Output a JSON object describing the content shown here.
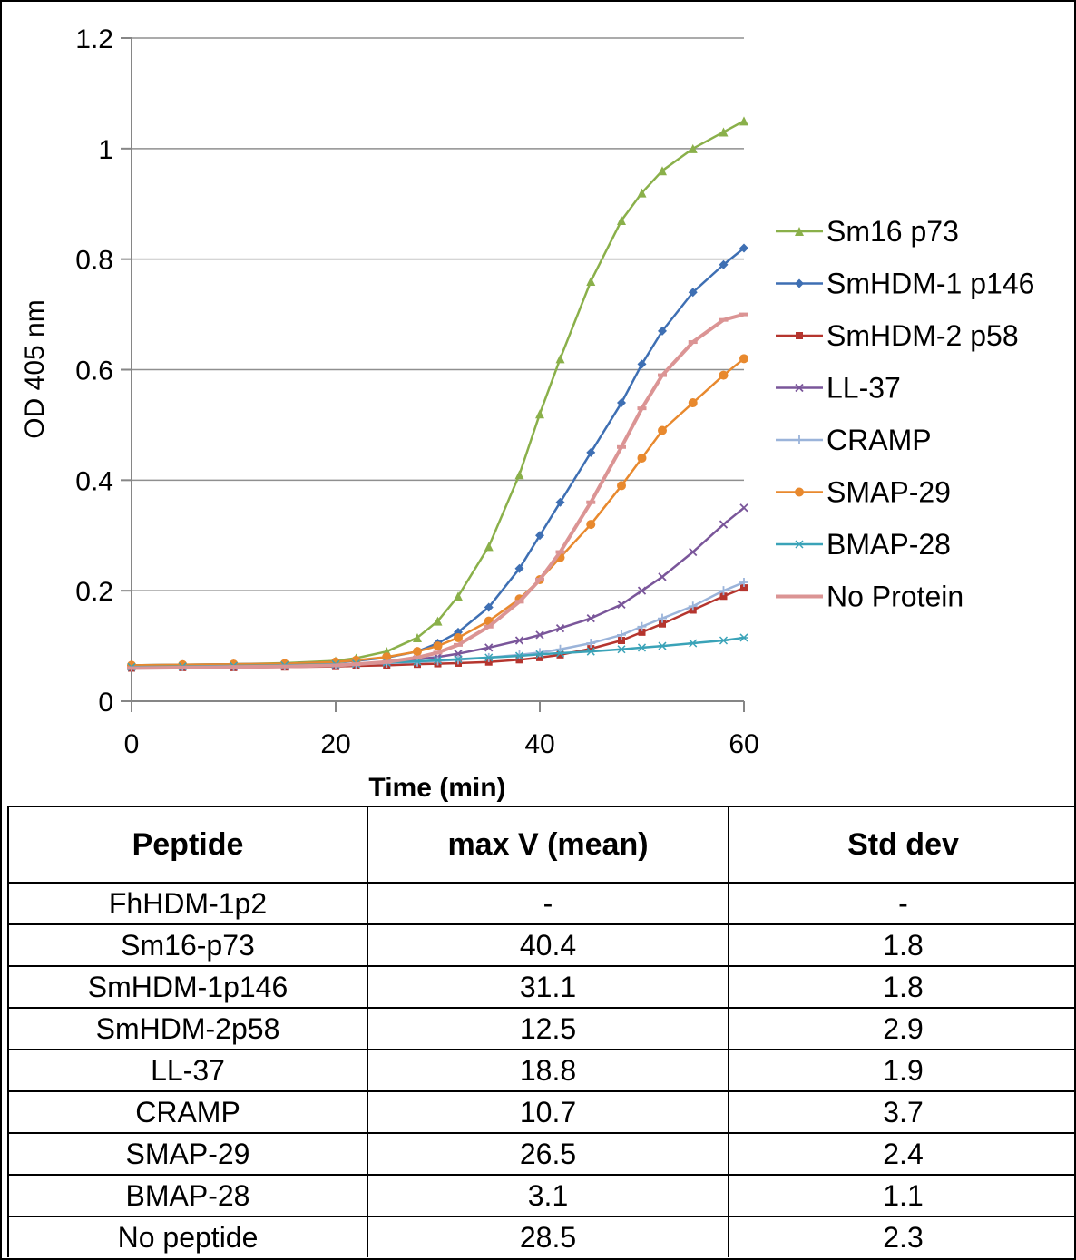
{
  "chart_data": {
    "type": "line",
    "title": "",
    "xlabel": "Time (min)",
    "ylabel": "OD 405 nm",
    "xlim": [
      0,
      60
    ],
    "ylim": [
      0,
      1.2
    ],
    "xticks": [
      0,
      20,
      40,
      60
    ],
    "yticks": [
      0,
      0.2,
      0.4,
      0.6,
      0.8,
      1,
      1.2
    ],
    "ytick_labels": [
      "0",
      "0.2",
      "0.4",
      "0.6",
      "0.8",
      "1",
      "1.2"
    ],
    "grid": "horizontal",
    "legend_position": "right",
    "x": [
      0,
      5,
      10,
      15,
      20,
      22,
      25,
      28,
      30,
      32,
      35,
      38,
      40,
      42,
      45,
      48,
      50,
      52,
      55,
      58,
      60
    ],
    "series": [
      {
        "name": "Sm16 p73",
        "color": "#8AB04A",
        "marker": "triangle",
        "values": [
          0.065,
          0.066,
          0.067,
          0.069,
          0.073,
          0.078,
          0.09,
          0.115,
          0.145,
          0.19,
          0.28,
          0.41,
          0.52,
          0.62,
          0.76,
          0.87,
          0.92,
          0.96,
          1.0,
          1.03,
          1.05
        ]
      },
      {
        "name": "SmHDM-1 p146",
        "color": "#3E6FB3",
        "marker": "diamond",
        "values": [
          0.065,
          0.066,
          0.067,
          0.068,
          0.071,
          0.073,
          0.079,
          0.09,
          0.105,
          0.125,
          0.17,
          0.24,
          0.3,
          0.36,
          0.45,
          0.54,
          0.61,
          0.67,
          0.74,
          0.79,
          0.82
        ]
      },
      {
        "name": "SmHDM-2 p58",
        "color": "#B5352E",
        "marker": "square",
        "values": [
          0.06,
          0.061,
          0.061,
          0.062,
          0.063,
          0.064,
          0.065,
          0.067,
          0.068,
          0.069,
          0.071,
          0.075,
          0.079,
          0.084,
          0.095,
          0.11,
          0.125,
          0.14,
          0.165,
          0.19,
          0.205
        ]
      },
      {
        "name": "LL-37",
        "color": "#7A569A",
        "marker": "x",
        "values": [
          0.062,
          0.063,
          0.063,
          0.064,
          0.066,
          0.068,
          0.071,
          0.076,
          0.08,
          0.086,
          0.097,
          0.11,
          0.12,
          0.132,
          0.15,
          0.175,
          0.2,
          0.225,
          0.27,
          0.32,
          0.35
        ]
      },
      {
        "name": "CRAMP",
        "color": "#9BB4DA",
        "marker": "plus",
        "values": [
          0.062,
          0.063,
          0.063,
          0.064,
          0.066,
          0.067,
          0.069,
          0.071,
          0.073,
          0.075,
          0.079,
          0.084,
          0.088,
          0.094,
          0.105,
          0.12,
          0.135,
          0.15,
          0.172,
          0.2,
          0.215
        ]
      },
      {
        "name": "SMAP-29",
        "color": "#E8892E",
        "marker": "circle",
        "values": [
          0.065,
          0.066,
          0.067,
          0.068,
          0.071,
          0.074,
          0.08,
          0.09,
          0.1,
          0.115,
          0.145,
          0.185,
          0.22,
          0.26,
          0.32,
          0.39,
          0.44,
          0.49,
          0.54,
          0.59,
          0.62
        ]
      },
      {
        "name": "BMAP-28",
        "color": "#3AA3B8",
        "marker": "asterisk",
        "values": [
          0.062,
          0.063,
          0.064,
          0.065,
          0.067,
          0.068,
          0.07,
          0.072,
          0.074,
          0.076,
          0.079,
          0.082,
          0.085,
          0.087,
          0.09,
          0.094,
          0.097,
          0.1,
          0.105,
          0.11,
          0.115
        ]
      },
      {
        "name": "No Protein",
        "color": "#DB9494",
        "marker": "dash",
        "values": [
          0.06,
          0.061,
          0.062,
          0.063,
          0.065,
          0.067,
          0.071,
          0.079,
          0.088,
          0.102,
          0.135,
          0.18,
          0.22,
          0.27,
          0.36,
          0.46,
          0.53,
          0.59,
          0.65,
          0.69,
          0.7
        ]
      }
    ]
  },
  "table": {
    "headers": [
      "Peptide",
      "max V (mean)",
      "Std dev"
    ],
    "rows": [
      [
        "FhHDM-1p2",
        "-",
        "-"
      ],
      [
        "Sm16-p73",
        "40.4",
        "1.8"
      ],
      [
        "SmHDM-1p146",
        "31.1",
        "1.8"
      ],
      [
        "SmHDM-2p58",
        "12.5",
        "2.9"
      ],
      [
        "LL-37",
        "18.8",
        "1.9"
      ],
      [
        "CRAMP",
        "10.7",
        "3.7"
      ],
      [
        "SMAP-29",
        "26.5",
        "2.4"
      ],
      [
        "BMAP-28",
        "3.1",
        "1.1"
      ],
      [
        "No peptide",
        "28.5",
        "2.3"
      ]
    ]
  }
}
